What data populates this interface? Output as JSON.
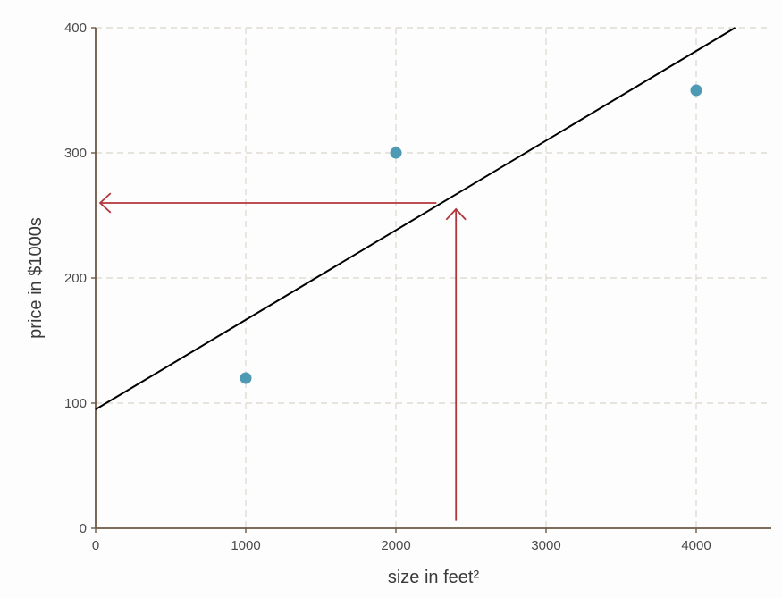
{
  "chart_data": {
    "type": "scatter",
    "title": "",
    "xlabel": "size in feet²",
    "ylabel": "price in $1000s",
    "xlim": [
      0,
      4500
    ],
    "ylim": [
      0,
      400
    ],
    "xticks": [
      0,
      1000,
      2000,
      3000,
      4000
    ],
    "yticks": [
      0,
      100,
      200,
      300,
      400
    ],
    "grid": true,
    "points": [
      {
        "x": 1000,
        "y": 120
      },
      {
        "x": 2000,
        "y": 300
      },
      {
        "x": 4000,
        "y": 350
      }
    ],
    "fit_line": {
      "intercept": 95,
      "slope": 0.0716
    },
    "arrows": [
      {
        "from": [
          2400,
          6
        ],
        "to": [
          2400,
          255
        ]
      },
      {
        "from": [
          2270,
          260
        ],
        "to": [
          30,
          260
        ]
      }
    ],
    "colors": {
      "points": "#4e9ab5",
      "fit_line": "#000000",
      "arrows": "#b2353b",
      "grid": "#e0dbd3",
      "axis": "#6b5844"
    }
  }
}
